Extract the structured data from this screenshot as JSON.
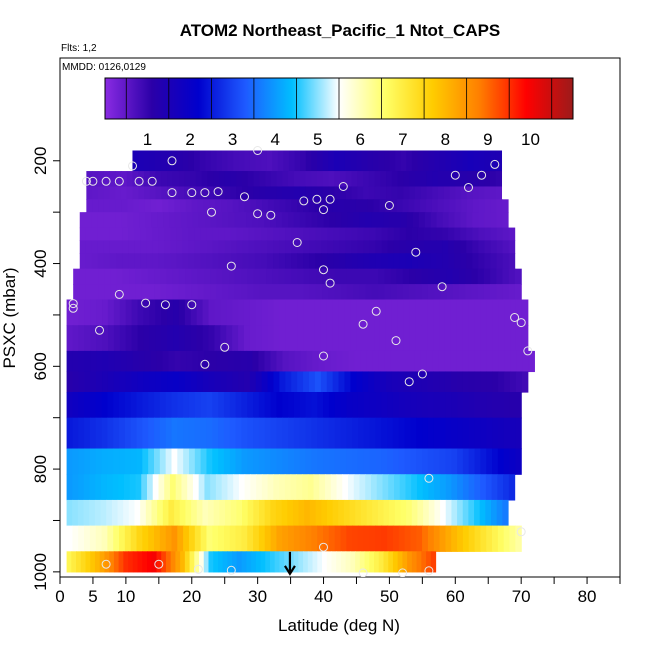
{
  "chart_data": {
    "type": "heatmap",
    "title": "ATOM2 Northeast_Pacific_1 Ntot_CAPS",
    "note_flights": "Flts: 1,2",
    "note_dates": "MMDD: 0126,0129",
    "xlabel": "Latitude (deg N)",
    "ylabel": "PSXC (mbar)",
    "xlim": [
      0,
      85
    ],
    "ylim": [
      1010,
      0
    ],
    "x_ticks": [
      0,
      5,
      10,
      20,
      30,
      40,
      50,
      60,
      70,
      80
    ],
    "x_minor_ticks": [
      15,
      25,
      35,
      45,
      55,
      65,
      75,
      85
    ],
    "y_ticks": [
      200,
      400,
      600,
      800,
      1000
    ],
    "y_minor_ticks": [
      300,
      500,
      700,
      900
    ],
    "colorbar": {
      "min": 0,
      "max": 11,
      "ticks": [
        1,
        2,
        3,
        4,
        5,
        6,
        7,
        8,
        9,
        10
      ],
      "stops": [
        "#8a2be2",
        "#2b00a8",
        "#0000cd",
        "#1e5aff",
        "#00bfff",
        "#ffffff",
        "#ffff66",
        "#ffcc00",
        "#ff7f00",
        "#ff0000",
        "#9c1a1a"
      ]
    },
    "bands": [
      {
        "p_top": 180,
        "p_bot": 220,
        "lat_min": 11,
        "lat_max": 67,
        "values": [
          1.5,
          1.3,
          1.0,
          0.8,
          0.7,
          1.0,
          1.5,
          1.2,
          1.0,
          1.3,
          1.6,
          1.4
        ]
      },
      {
        "p_top": 220,
        "p_bot": 250,
        "lat_min": 4,
        "lat_max": 67,
        "values": [
          0.6,
          0.5,
          0.9,
          1.0,
          1.2,
          1.0,
          0.8,
          0.7,
          0.9,
          1.1,
          1.3,
          1.2,
          1.0
        ]
      },
      {
        "p_top": 250,
        "p_bot": 275,
        "lat_min": 4,
        "lat_max": 67,
        "values": [
          0.5,
          0.4,
          0.6,
          0.8,
          1.0,
          1.2,
          1.3,
          1.1,
          0.9,
          1.0,
          0.8,
          0.6,
          0.5
        ]
      },
      {
        "p_top": 275,
        "p_bot": 300,
        "lat_min": 4,
        "lat_max": 68,
        "values": [
          0.4,
          0.4,
          0.3,
          0.5,
          0.6,
          0.8,
          1.0,
          1.2,
          1.1,
          0.9,
          0.7,
          0.5,
          0.4
        ]
      },
      {
        "p_top": 300,
        "p_bot": 330,
        "lat_min": 3,
        "lat_max": 68,
        "values": [
          0.3,
          0.3,
          0.4,
          0.5,
          0.6,
          0.7,
          0.9,
          1.1,
          1.3,
          1.2,
          0.8,
          0.5,
          0.4
        ]
      },
      {
        "p_top": 330,
        "p_bot": 355,
        "lat_min": 3,
        "lat_max": 69,
        "values": [
          0.3,
          0.3,
          0.4,
          0.5,
          0.5,
          0.6,
          0.7,
          0.8,
          0.9,
          1.1,
          1.0,
          0.7,
          0.5
        ]
      },
      {
        "p_top": 355,
        "p_bot": 380,
        "lat_min": 3,
        "lat_max": 69,
        "values": [
          0.4,
          0.4,
          0.4,
          0.5,
          0.6,
          0.7,
          0.8,
          0.9,
          1.0,
          1.2,
          1.3,
          0.9,
          0.6
        ]
      },
      {
        "p_top": 380,
        "p_bot": 410,
        "lat_min": 3,
        "lat_max": 69,
        "values": [
          0.4,
          0.5,
          0.5,
          0.6,
          0.7,
          0.8,
          1.0,
          1.2,
          1.4,
          1.5,
          1.3,
          1.0,
          0.7
        ]
      },
      {
        "p_top": 410,
        "p_bot": 440,
        "lat_min": 2,
        "lat_max": 70,
        "values": [
          0.3,
          0.3,
          0.4,
          0.5,
          0.6,
          0.7,
          0.8,
          0.9,
          0.9,
          1.1,
          1.3,
          1.0,
          0.6
        ]
      },
      {
        "p_top": 440,
        "p_bot": 470,
        "lat_min": 2,
        "lat_max": 70,
        "values": [
          0.3,
          0.3,
          0.3,
          0.4,
          0.5,
          0.6,
          0.6,
          0.7,
          0.8,
          0.7,
          0.6,
          0.5,
          0.4
        ]
      },
      {
        "p_top": 470,
        "p_bot": 520,
        "lat_min": 1,
        "lat_max": 71,
        "values": [
          0.3,
          0.4,
          0.9,
          1.2,
          0.5,
          0.4,
          0.3,
          0.3,
          0.3,
          0.3,
          0.3,
          0.3,
          0.3,
          0.3
        ]
      },
      {
        "p_top": 520,
        "p_bot": 570,
        "lat_min": 1,
        "lat_max": 71,
        "values": [
          0.5,
          0.7,
          1.1,
          1.3,
          1.0,
          0.4,
          0.3,
          0.3,
          0.3,
          0.3,
          0.3,
          0.3,
          0.3,
          0.3
        ]
      },
      {
        "p_top": 570,
        "p_bot": 610,
        "lat_min": 1,
        "lat_max": 72,
        "values": [
          1.3,
          1.4,
          1.2,
          1.0,
          1.1,
          1.2,
          0.6,
          0.4,
          0.3,
          0.3,
          0.3,
          0.3,
          0.3,
          0.3
        ]
      },
      {
        "p_top": 610,
        "p_bot": 650,
        "lat_min": 1,
        "lat_max": 71,
        "values": [
          1.2,
          1.5,
          1.8,
          2.0,
          1.6,
          1.3,
          2.5,
          3.2,
          2.2,
          1.6,
          1.4,
          1.2,
          1.1,
          0.8
        ]
      },
      {
        "p_top": 650,
        "p_bot": 700,
        "lat_min": 1,
        "lat_max": 70,
        "values": [
          1.8,
          2.2,
          2.5,
          2.8,
          3.0,
          2.6,
          2.2,
          2.4,
          2.0,
          1.8,
          1.6,
          1.5,
          1.3,
          1.2
        ]
      },
      {
        "p_top": 700,
        "p_bot": 760,
        "lat_min": 1,
        "lat_max": 70,
        "values": [
          2.5,
          2.8,
          3.2,
          3.6,
          3.5,
          3.2,
          3.0,
          2.8,
          2.6,
          2.4,
          2.2,
          2.0,
          1.8,
          1.6
        ]
      },
      {
        "p_top": 760,
        "p_bot": 810,
        "lat_min": 1,
        "lat_max": 70,
        "values": [
          4.0,
          4.2,
          4.3,
          5.5,
          4.5,
          4.0,
          3.8,
          3.6,
          3.5,
          3.4,
          3.2,
          3.0,
          2.4,
          1.8
        ]
      },
      {
        "p_top": 810,
        "p_bot": 860,
        "lat_min": 1,
        "lat_max": 69,
        "values": [
          4.0,
          4.3,
          4.5,
          6.5,
          5.0,
          5.5,
          6.0,
          6.3,
          5.5,
          5.0,
          4.5,
          4.0,
          3.3,
          2.6
        ]
      },
      {
        "p_top": 860,
        "p_bot": 910,
        "lat_min": 1,
        "lat_max": 68,
        "values": [
          5.0,
          5.2,
          5.5,
          7.0,
          6.0,
          6.5,
          7.5,
          8.0,
          7.5,
          7.0,
          6.5,
          5.5,
          4.5,
          3.5
        ]
      },
      {
        "p_top": 910,
        "p_bot": 960,
        "lat_min": 1,
        "lat_max": 70,
        "values": [
          5.5,
          6.0,
          7.5,
          8.5,
          6.5,
          7.0,
          8.3,
          8.8,
          9.3,
          9.4,
          9.1,
          8.0,
          7.0,
          6.0
        ]
      },
      {
        "p_top": 960,
        "p_bot": 1000,
        "lat_min": 1,
        "lat_max": 57,
        "values": [
          6.8,
          8.0,
          9.5,
          10.0,
          8.0,
          4.5,
          4.0,
          4.5,
          5.0,
          5.5,
          6.0,
          7.0,
          8.5,
          9.5
        ]
      }
    ],
    "samples": [
      [
        11,
        210
      ],
      [
        17,
        200
      ],
      [
        30,
        180
      ],
      [
        66,
        207
      ],
      [
        4,
        240
      ],
      [
        5,
        240
      ],
      [
        7,
        240
      ],
      [
        9,
        240
      ],
      [
        12,
        240
      ],
      [
        14,
        240
      ],
      [
        17,
        262
      ],
      [
        20,
        262
      ],
      [
        22,
        262
      ],
      [
        24,
        260
      ],
      [
        28,
        270
      ],
      [
        37,
        278
      ],
      [
        39,
        275
      ],
      [
        41,
        275
      ],
      [
        43,
        250
      ],
      [
        50,
        287
      ],
      [
        60,
        228
      ],
      [
        62,
        252
      ],
      [
        64,
        228
      ],
      [
        23,
        300
      ],
      [
        30,
        303
      ],
      [
        32,
        306
      ],
      [
        40,
        295
      ],
      [
        36,
        359
      ],
      [
        54,
        378
      ],
      [
        40,
        412
      ],
      [
        26,
        405
      ],
      [
        41,
        438
      ],
      [
        58,
        445
      ],
      [
        9,
        460
      ],
      [
        13,
        477
      ],
      [
        16,
        480
      ],
      [
        20,
        480
      ],
      [
        2,
        478
      ],
      [
        2,
        487
      ],
      [
        6,
        530
      ],
      [
        48,
        493
      ],
      [
        46,
        518
      ],
      [
        69,
        505
      ],
      [
        70,
        515
      ],
      [
        51,
        550
      ],
      [
        71,
        570
      ],
      [
        25,
        563
      ],
      [
        22,
        596
      ],
      [
        40,
        580
      ],
      [
        53,
        630
      ],
      [
        55,
        615
      ],
      [
        56,
        818
      ],
      [
        70,
        922
      ],
      [
        40,
        952
      ],
      [
        7,
        985
      ],
      [
        15,
        985
      ],
      [
        21,
        995
      ],
      [
        26,
        997
      ],
      [
        46,
        1002
      ],
      [
        52,
        1002
      ],
      [
        56,
        998
      ]
    ],
    "flight_marker": {
      "lat": 34.9,
      "pressure": 1000
    }
  }
}
